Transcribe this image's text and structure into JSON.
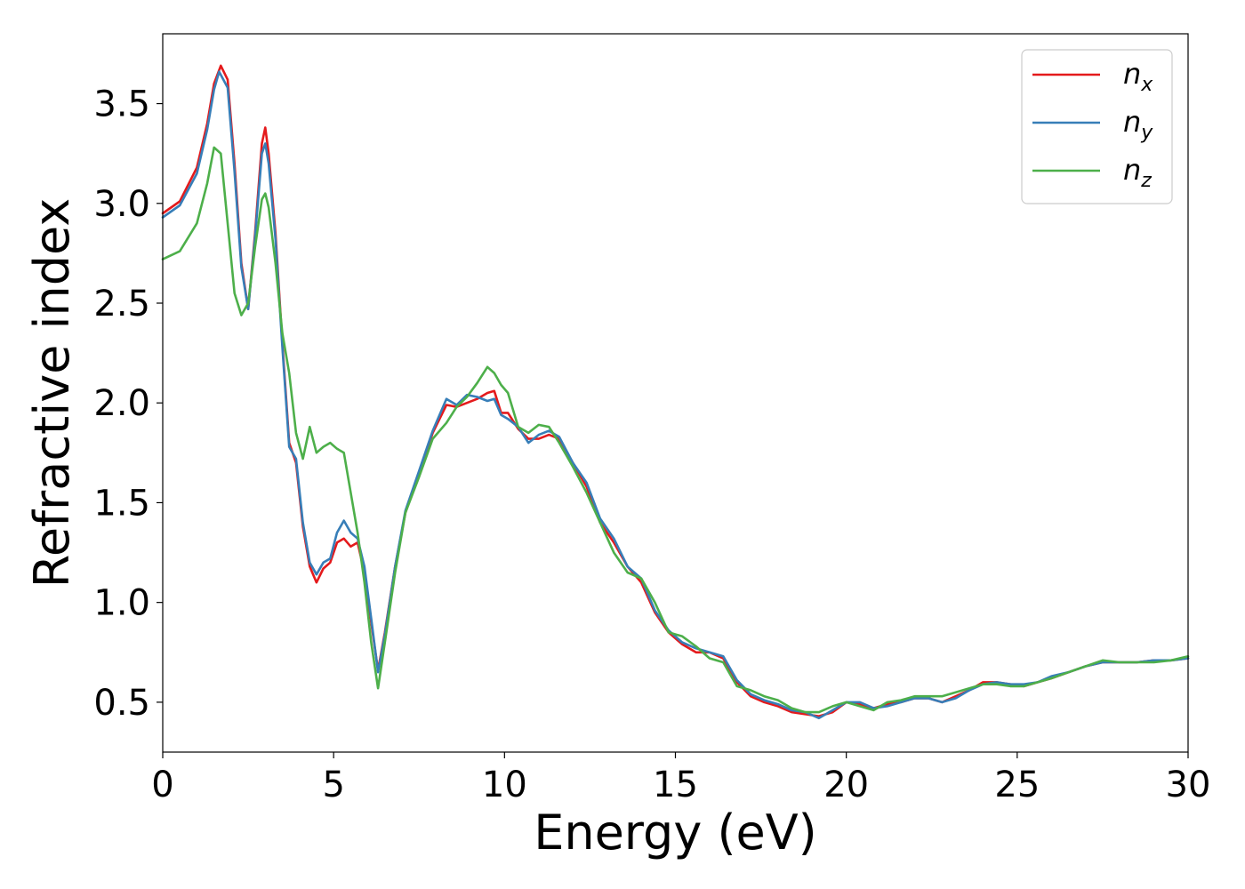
{
  "chart_data": {
    "type": "line",
    "xlabel": "Energy (eV)",
    "ylabel": "Refractive index",
    "xlim": [
      0,
      30
    ],
    "ylim": [
      0.25,
      3.85
    ],
    "xticks": [
      0,
      5,
      10,
      15,
      20,
      25,
      30
    ],
    "xtick_labels": [
      "0",
      "5",
      "10",
      "15",
      "20",
      "25",
      "30"
    ],
    "yticks": [
      0.5,
      1.0,
      1.5,
      2.0,
      2.5,
      3.0,
      3.5
    ],
    "ytick_labels": [
      "0.5",
      "1.0",
      "1.5",
      "2.0",
      "2.5",
      "3.0",
      "3.5"
    ],
    "grid": false,
    "legend_position": "top-right",
    "series": [
      {
        "name": "n",
        "subscript": "x",
        "color": "#e41a1c",
        "x": [
          0,
          0.5,
          1.0,
          1.3,
          1.5,
          1.7,
          1.9,
          2.1,
          2.3,
          2.5,
          2.7,
          2.9,
          3.0,
          3.1,
          3.3,
          3.5,
          3.7,
          3.9,
          4.1,
          4.3,
          4.5,
          4.7,
          4.9,
          5.1,
          5.3,
          5.5,
          5.7,
          5.9,
          6.1,
          6.3,
          6.5,
          6.8,
          7.1,
          7.5,
          7.9,
          8.3,
          8.6,
          8.9,
          9.2,
          9.5,
          9.7,
          9.9,
          10.1,
          10.4,
          10.7,
          11.0,
          11.3,
          11.6,
          12.0,
          12.4,
          12.8,
          13.2,
          13.6,
          14.0,
          14.4,
          14.8,
          15.2,
          15.6,
          16.0,
          16.4,
          16.8,
          17.2,
          17.6,
          18.0,
          18.4,
          18.8,
          19.2,
          19.6,
          20.0,
          20.4,
          20.8,
          21.2,
          21.6,
          22.0,
          22.4,
          22.8,
          23.2,
          23.6,
          24.0,
          24.4,
          24.8,
          25.2,
          25.6,
          26.0,
          26.5,
          27.0,
          27.5,
          28.0,
          28.5,
          29.0,
          29.5,
          30.0
        ],
        "values": [
          2.95,
          3.01,
          3.18,
          3.4,
          3.6,
          3.69,
          3.62,
          3.2,
          2.7,
          2.47,
          2.85,
          3.3,
          3.38,
          3.25,
          2.85,
          2.3,
          1.8,
          1.7,
          1.38,
          1.18,
          1.1,
          1.17,
          1.2,
          1.3,
          1.32,
          1.28,
          1.3,
          1.15,
          0.9,
          0.66,
          0.85,
          1.18,
          1.45,
          1.65,
          1.85,
          1.99,
          1.98,
          2.0,
          2.02,
          2.05,
          2.06,
          1.95,
          1.95,
          1.87,
          1.82,
          1.82,
          1.84,
          1.82,
          1.7,
          1.58,
          1.4,
          1.3,
          1.18,
          1.1,
          0.95,
          0.85,
          0.79,
          0.75,
          0.75,
          0.72,
          0.6,
          0.53,
          0.5,
          0.48,
          0.45,
          0.44,
          0.43,
          0.45,
          0.5,
          0.49,
          0.47,
          0.49,
          0.5,
          0.52,
          0.52,
          0.5,
          0.53,
          0.56,
          0.6,
          0.6,
          0.59,
          0.58,
          0.6,
          0.62,
          0.65,
          0.68,
          0.7,
          0.7,
          0.7,
          0.71,
          0.71,
          0.72
        ]
      },
      {
        "name": "n",
        "subscript": "y",
        "color": "#377eb8",
        "x": [
          0,
          0.5,
          1.0,
          1.3,
          1.5,
          1.65,
          1.9,
          2.1,
          2.3,
          2.5,
          2.7,
          2.9,
          3.0,
          3.1,
          3.3,
          3.5,
          3.7,
          3.9,
          4.1,
          4.3,
          4.5,
          4.7,
          4.9,
          5.1,
          5.3,
          5.5,
          5.7,
          5.9,
          6.1,
          6.3,
          6.5,
          6.8,
          7.1,
          7.5,
          7.9,
          8.3,
          8.6,
          8.9,
          9.2,
          9.5,
          9.7,
          9.9,
          10.1,
          10.4,
          10.7,
          11.0,
          11.3,
          11.6,
          12.0,
          12.4,
          12.8,
          13.2,
          13.6,
          14.0,
          14.4,
          14.8,
          15.2,
          15.6,
          16.0,
          16.4,
          16.8,
          17.2,
          17.6,
          18.0,
          18.4,
          18.8,
          19.2,
          19.6,
          20.0,
          20.4,
          20.8,
          21.2,
          21.6,
          22.0,
          22.4,
          22.8,
          23.2,
          23.6,
          24.0,
          24.4,
          24.8,
          25.2,
          25.6,
          26.0,
          26.5,
          27.0,
          27.5,
          28.0,
          28.5,
          29.0,
          29.5,
          30.0
        ],
        "values": [
          2.93,
          2.99,
          3.15,
          3.37,
          3.57,
          3.66,
          3.58,
          3.16,
          2.68,
          2.47,
          2.83,
          3.25,
          3.3,
          3.2,
          2.82,
          2.28,
          1.78,
          1.72,
          1.4,
          1.2,
          1.14,
          1.2,
          1.22,
          1.35,
          1.41,
          1.35,
          1.32,
          1.18,
          0.92,
          0.65,
          0.84,
          1.18,
          1.46,
          1.66,
          1.86,
          2.02,
          1.99,
          2.04,
          2.03,
          2.01,
          2.02,
          1.94,
          1.92,
          1.88,
          1.8,
          1.84,
          1.86,
          1.83,
          1.7,
          1.6,
          1.42,
          1.32,
          1.18,
          1.12,
          0.96,
          0.86,
          0.8,
          0.77,
          0.75,
          0.73,
          0.61,
          0.54,
          0.51,
          0.49,
          0.46,
          0.45,
          0.42,
          0.46,
          0.5,
          0.5,
          0.47,
          0.48,
          0.5,
          0.52,
          0.52,
          0.5,
          0.52,
          0.56,
          0.59,
          0.6,
          0.59,
          0.59,
          0.6,
          0.63,
          0.65,
          0.68,
          0.7,
          0.7,
          0.7,
          0.71,
          0.71,
          0.72
        ]
      },
      {
        "name": "n",
        "subscript": "z",
        "color": "#4daf4a",
        "x": [
          0,
          0.5,
          1.0,
          1.3,
          1.5,
          1.7,
          1.9,
          2.1,
          2.3,
          2.5,
          2.7,
          2.9,
          3.0,
          3.1,
          3.3,
          3.5,
          3.7,
          3.9,
          4.1,
          4.3,
          4.5,
          4.7,
          4.9,
          5.1,
          5.3,
          5.5,
          5.7,
          5.9,
          6.1,
          6.3,
          6.5,
          6.8,
          7.1,
          7.5,
          7.9,
          8.3,
          8.6,
          8.9,
          9.2,
          9.5,
          9.7,
          9.9,
          10.1,
          10.4,
          10.7,
          11.0,
          11.3,
          11.6,
          12.0,
          12.4,
          12.8,
          13.2,
          13.6,
          14.0,
          14.4,
          14.8,
          15.2,
          15.6,
          16.0,
          16.4,
          16.8,
          17.2,
          17.6,
          18.0,
          18.4,
          18.8,
          19.2,
          19.6,
          20.0,
          20.4,
          20.8,
          21.2,
          21.6,
          22.0,
          22.4,
          22.8,
          23.2,
          23.6,
          24.0,
          24.4,
          24.8,
          25.2,
          25.6,
          26.0,
          26.5,
          27.0,
          27.5,
          28.0,
          28.5,
          29.0,
          29.5,
          30.0
        ],
        "values": [
          2.72,
          2.76,
          2.9,
          3.1,
          3.28,
          3.25,
          2.9,
          2.55,
          2.44,
          2.5,
          2.78,
          3.02,
          3.05,
          2.98,
          2.7,
          2.35,
          2.15,
          1.85,
          1.72,
          1.88,
          1.75,
          1.78,
          1.8,
          1.77,
          1.75,
          1.55,
          1.35,
          1.1,
          0.8,
          0.57,
          0.8,
          1.15,
          1.45,
          1.63,
          1.82,
          1.9,
          1.98,
          2.03,
          2.1,
          2.18,
          2.15,
          2.09,
          2.05,
          1.88,
          1.85,
          1.89,
          1.88,
          1.8,
          1.68,
          1.55,
          1.4,
          1.25,
          1.15,
          1.12,
          1.0,
          0.85,
          0.83,
          0.78,
          0.72,
          0.7,
          0.58,
          0.56,
          0.53,
          0.51,
          0.47,
          0.45,
          0.45,
          0.48,
          0.5,
          0.48,
          0.46,
          0.5,
          0.51,
          0.53,
          0.53,
          0.53,
          0.55,
          0.57,
          0.59,
          0.59,
          0.58,
          0.58,
          0.6,
          0.62,
          0.65,
          0.68,
          0.71,
          0.7,
          0.7,
          0.7,
          0.71,
          0.73
        ]
      }
    ]
  }
}
